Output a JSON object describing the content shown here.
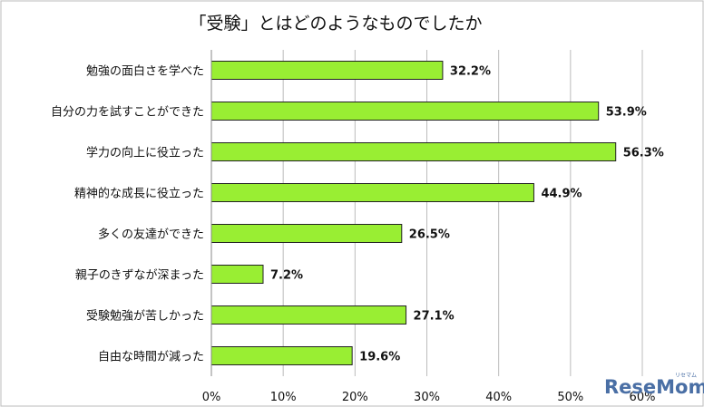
{
  "chart_data": {
    "type": "bar",
    "orientation": "horizontal",
    "title": "「受験」とはどのようなものでしたか",
    "categories": [
      "勉強の面白さを学べた",
      "自分の力を試すことができた",
      "学力の向上に役立った",
      "精神的な成長に役立った",
      "多くの友達ができた",
      "親子のきずなが深まった",
      "受験勉強が苦しかった",
      "自由な時間が減った"
    ],
    "values": [
      32.2,
      53.9,
      56.3,
      44.9,
      26.5,
      7.2,
      27.1,
      19.6
    ],
    "data_labels": [
      "32.2%",
      "53.9%",
      "56.3%",
      "44.9%",
      "26.5%",
      "7.2%",
      "27.1%",
      "19.6%"
    ],
    "xlim": [
      0,
      60
    ],
    "ticks": [
      "0%",
      "10%",
      "20%",
      "30%",
      "40%",
      "50%",
      "60%"
    ],
    "grid": true,
    "bar_color": "#99ee33",
    "bar_edge_color": "#222222",
    "legend": "none"
  },
  "watermark": {
    "text": "ReseMom",
    "small_text": "リセマム",
    "color": "#4a6fa5"
  }
}
